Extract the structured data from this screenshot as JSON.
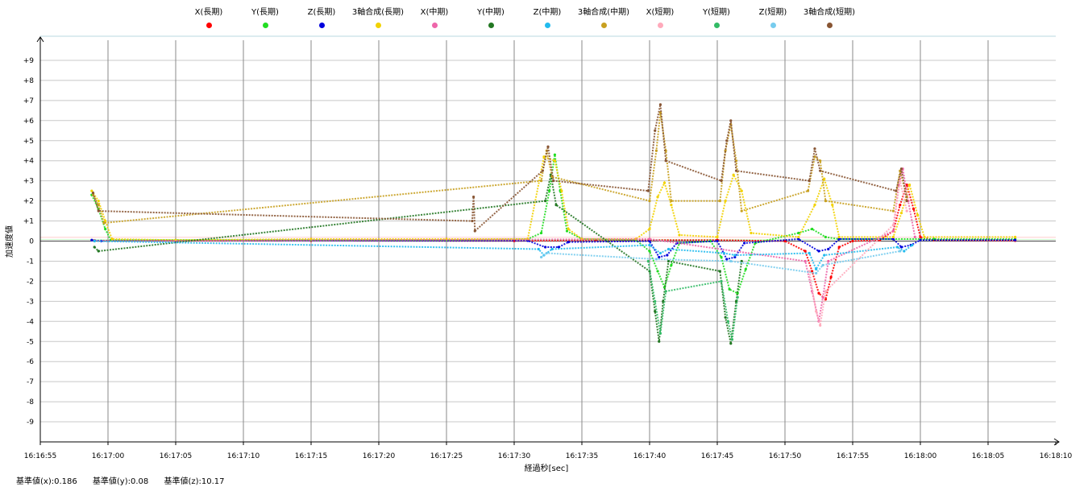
{
  "chart_data": {
    "type": "scatter",
    "xlabel": "経過秒[sec]",
    "ylabel": "加速度値",
    "x_ticks": [
      "16:16:55",
      "16:17:00",
      "16:17:05",
      "16:17:10",
      "16:17:15",
      "16:17:20",
      "16:17:25",
      "16:17:30",
      "16:17:35",
      "16:17:40",
      "16:17:45",
      "16:17:50",
      "16:17:55",
      "16:18:00",
      "16:18:05",
      "16:18:10"
    ],
    "y_ticks": [
      "+9",
      "+8",
      "+7",
      "+6",
      "+5",
      "+4",
      "+3",
      "+2",
      "+1",
      "0",
      "-1",
      "-2",
      "-3",
      "-4",
      "-5",
      "-6",
      "-7",
      "-8",
      "-9"
    ],
    "xlim": [
      0,
      75
    ],
    "ylim": [
      -10,
      10
    ],
    "x_unit": "seconds after 16:16:55",
    "grid": true,
    "legend_position": "top",
    "series": [
      {
        "name": "X(長期)",
        "color": "#ff0000",
        "points": [
          [
            4,
            0.02
          ],
          [
            10,
            0.01
          ],
          [
            20,
            0.02
          ],
          [
            35,
            0.01
          ],
          [
            41,
            0.05
          ],
          [
            45,
            0.05
          ],
          [
            50,
            0.05
          ],
          [
            55,
            0.0
          ],
          [
            56.5,
            -0.5
          ],
          [
            57,
            -1.5
          ],
          [
            57.5,
            -2.6
          ],
          [
            58,
            -2.9
          ],
          [
            58.4,
            -1.8
          ],
          [
            59,
            -0.3
          ],
          [
            60,
            0.0
          ],
          [
            62,
            0.05
          ],
          [
            63,
            0.5
          ],
          [
            63.5,
            1.8
          ],
          [
            64,
            2.8
          ],
          [
            64.5,
            1.6
          ],
          [
            65,
            0.2
          ],
          [
            66,
            0.05
          ],
          [
            72,
            0.02
          ]
        ]
      },
      {
        "name": "Y(長期)",
        "color": "#22dd22",
        "points": [
          [
            3.8,
            2.3
          ],
          [
            4.3,
            1.6
          ],
          [
            4.8,
            0.6
          ],
          [
            5.2,
            0.05
          ],
          [
            10,
            0.05
          ],
          [
            20,
            0.05
          ],
          [
            30,
            0.05
          ],
          [
            36,
            0.1
          ],
          [
            37,
            0.4
          ],
          [
            37.6,
            2.5
          ],
          [
            38,
            4.3
          ],
          [
            38.4,
            2.5
          ],
          [
            38.9,
            0.5
          ],
          [
            40,
            0.1
          ],
          [
            44,
            0.05
          ],
          [
            45,
            -0.5
          ],
          [
            45.6,
            -1.5
          ],
          [
            46.1,
            -2.3
          ],
          [
            46.6,
            -1.2
          ],
          [
            47.2,
            -0.1
          ],
          [
            49.5,
            0.0
          ],
          [
            50.3,
            -0.8
          ],
          [
            50.9,
            -2.4
          ],
          [
            51.5,
            -2.6
          ],
          [
            52.1,
            -1.4
          ],
          [
            52.8,
            -0.1
          ],
          [
            56,
            0.4
          ],
          [
            57,
            0.6
          ],
          [
            58,
            0.2
          ],
          [
            59,
            0.1
          ],
          [
            66,
            0.1
          ],
          [
            72,
            0.1
          ]
        ]
      },
      {
        "name": "Z(長期)",
        "color": "#0000dd",
        "points": [
          [
            3.8,
            0.05
          ],
          [
            4.5,
            0.0
          ],
          [
            10,
            0.02
          ],
          [
            36,
            0.02
          ],
          [
            37.3,
            -0.3
          ],
          [
            38.3,
            -0.3
          ],
          [
            39,
            -0.05
          ],
          [
            45,
            0.0
          ],
          [
            45.7,
            -0.8
          ],
          [
            46.3,
            -0.7
          ],
          [
            47,
            -0.1
          ],
          [
            50,
            0.0
          ],
          [
            50.7,
            -0.9
          ],
          [
            51.3,
            -0.8
          ],
          [
            52,
            -0.1
          ],
          [
            56,
            0.1
          ],
          [
            57.5,
            -0.5
          ],
          [
            58.2,
            -0.4
          ],
          [
            59,
            0.1
          ],
          [
            63,
            0.1
          ],
          [
            63.6,
            -0.3
          ],
          [
            64.3,
            -0.2
          ],
          [
            65,
            0.05
          ],
          [
            72,
            0.05
          ]
        ]
      },
      {
        "name": "3軸合成(長期)",
        "color": "#f2d200",
        "points": [
          [
            3.8,
            2.5
          ],
          [
            4.3,
            2.0
          ],
          [
            4.8,
            1.0
          ],
          [
            5.3,
            0.1
          ],
          [
            10,
            0.05
          ],
          [
            20,
            0.1
          ],
          [
            30,
            0.1
          ],
          [
            36,
            0.1
          ],
          [
            37.2,
            4.2
          ],
          [
            38,
            4.0
          ],
          [
            38.5,
            2.5
          ],
          [
            39,
            0.6
          ],
          [
            40,
            0.1
          ],
          [
            44,
            0.1
          ],
          [
            45,
            0.6
          ],
          [
            45.6,
            2.2
          ],
          [
            46.1,
            2.9
          ],
          [
            46.6,
            1.8
          ],
          [
            47.2,
            0.3
          ],
          [
            50,
            0.2
          ],
          [
            50.6,
            2.0
          ],
          [
            51.2,
            3.3
          ],
          [
            51.8,
            2.5
          ],
          [
            52.5,
            0.4
          ],
          [
            56,
            0.2
          ],
          [
            57.2,
            1.8
          ],
          [
            57.9,
            3.1
          ],
          [
            58.5,
            1.8
          ],
          [
            59,
            0.2
          ],
          [
            63,
            0.2
          ],
          [
            63.6,
            1.4
          ],
          [
            64.2,
            2.8
          ],
          [
            64.8,
            1.3
          ],
          [
            65.3,
            0.2
          ],
          [
            72,
            0.2
          ]
        ]
      },
      {
        "name": "X(中期)",
        "color": "#ee66aa",
        "points": [
          [
            4,
            0.0
          ],
          [
            45,
            0.1
          ],
          [
            56.5,
            -1.0
          ],
          [
            57,
            -2.5
          ],
          [
            57.5,
            -4.0
          ],
          [
            57.8,
            -2.8
          ],
          [
            58.2,
            -1.0
          ],
          [
            63,
            0.5
          ],
          [
            63.4,
            2.8
          ],
          [
            63.7,
            3.6
          ],
          [
            64.1,
            2.0
          ],
          [
            64.6,
            0.2
          ]
        ]
      },
      {
        "name": "Y(中期)",
        "color": "#227722",
        "points": [
          [
            4,
            -0.3
          ],
          [
            4.3,
            -0.5
          ],
          [
            37.3,
            2.0
          ],
          [
            37.7,
            3.3
          ],
          [
            38.1,
            1.8
          ],
          [
            45,
            -1.5
          ],
          [
            45.4,
            -3.5
          ],
          [
            45.7,
            -5.0
          ],
          [
            46,
            -3.0
          ],
          [
            46.4,
            -1.0
          ],
          [
            50.2,
            -1.5
          ],
          [
            50.6,
            -3.8
          ],
          [
            51,
            -5.1
          ],
          [
            51.4,
            -3.0
          ],
          [
            51.8,
            -1.0
          ]
        ]
      },
      {
        "name": "Z(中期)",
        "color": "#22bbee",
        "points": [
          [
            4,
            0.0
          ],
          [
            36.8,
            -0.4
          ],
          [
            37.2,
            -0.7
          ],
          [
            37.8,
            -0.4
          ],
          [
            45,
            -0.2
          ],
          [
            45.8,
            -0.6
          ],
          [
            46.4,
            -0.4
          ],
          [
            50.5,
            -0.6
          ],
          [
            51.3,
            -0.7
          ],
          [
            56.8,
            -0.6
          ],
          [
            57.3,
            -1.4
          ],
          [
            57.9,
            -0.7
          ],
          [
            63.3,
            -0.3
          ],
          [
            63.8,
            -0.5
          ],
          [
            64.4,
            -0.2
          ]
        ]
      },
      {
        "name": "3軸合成(中期)",
        "color": "#c8a020",
        "points": [
          [
            3.9,
            2.3
          ],
          [
            4.3,
            1.8
          ],
          [
            4.7,
            0.9
          ],
          [
            37,
            3.0
          ],
          [
            37.4,
            4.5
          ],
          [
            37.8,
            3.2
          ],
          [
            45,
            2.0
          ],
          [
            45.5,
            4.5
          ],
          [
            45.8,
            6.4
          ],
          [
            46.2,
            4.5
          ],
          [
            46.6,
            2.0
          ],
          [
            50.2,
            2.0
          ],
          [
            50.6,
            4.5
          ],
          [
            51,
            5.8
          ],
          [
            51.4,
            4.0
          ],
          [
            51.8,
            1.5
          ],
          [
            56.7,
            2.5
          ],
          [
            57.2,
            4.2
          ],
          [
            57.6,
            4.0
          ],
          [
            58,
            2.0
          ],
          [
            63,
            1.5
          ],
          [
            63.5,
            3.5
          ],
          [
            64,
            2.2
          ]
        ]
      },
      {
        "name": "X(短期)",
        "color": "#ffaabb",
        "points": [
          [
            56.8,
            -1.5
          ],
          [
            57.3,
            -3.5
          ],
          [
            57.6,
            -4.2
          ],
          [
            58,
            -2.5
          ],
          [
            63,
            0.8
          ],
          [
            63.5,
            3.0
          ],
          [
            64,
            1.5
          ]
        ]
      },
      {
        "name": "Y(短期)",
        "color": "#33bb66",
        "points": [
          [
            44.9,
            -1.0
          ],
          [
            45.4,
            -3.0
          ],
          [
            45.8,
            -4.6
          ],
          [
            46.2,
            -2.5
          ],
          [
            50.3,
            -2.0
          ],
          [
            50.8,
            -4.0
          ],
          [
            51.1,
            -4.9
          ],
          [
            51.5,
            -2.8
          ]
        ]
      },
      {
        "name": "Z(短期)",
        "color": "#77ccee",
        "points": [
          [
            37,
            -0.8
          ],
          [
            37.4,
            -0.6
          ],
          [
            45.5,
            -0.9
          ],
          [
            51,
            -1.0
          ],
          [
            57.3,
            -1.6
          ],
          [
            57.8,
            -1.2
          ],
          [
            63.5,
            -0.5
          ]
        ]
      },
      {
        "name": "3軸合成(短期)",
        "color": "#885533",
        "points": [
          [
            3.9,
            2.4
          ],
          [
            4.3,
            1.5
          ],
          [
            31.9,
            1.0
          ],
          [
            32,
            2.2
          ],
          [
            32.1,
            0.5
          ],
          [
            37.1,
            3.5
          ],
          [
            37.5,
            4.7
          ],
          [
            37.9,
            3.0
          ],
          [
            44.9,
            2.5
          ],
          [
            45.4,
            5.5
          ],
          [
            45.8,
            6.8
          ],
          [
            46.2,
            4.0
          ],
          [
            50.3,
            3.0
          ],
          [
            50.7,
            5.0
          ],
          [
            51,
            6.0
          ],
          [
            51.4,
            3.5
          ],
          [
            56.8,
            3.0
          ],
          [
            57.2,
            4.6
          ],
          [
            57.6,
            3.5
          ],
          [
            63.2,
            2.5
          ],
          [
            63.6,
            3.6
          ],
          [
            64,
            2.0
          ]
        ]
      }
    ]
  },
  "footer": {
    "base_x": "基準値(x):0.186",
    "base_y": "基準値(y):0.08",
    "base_z": "基準値(z):10.17"
  }
}
